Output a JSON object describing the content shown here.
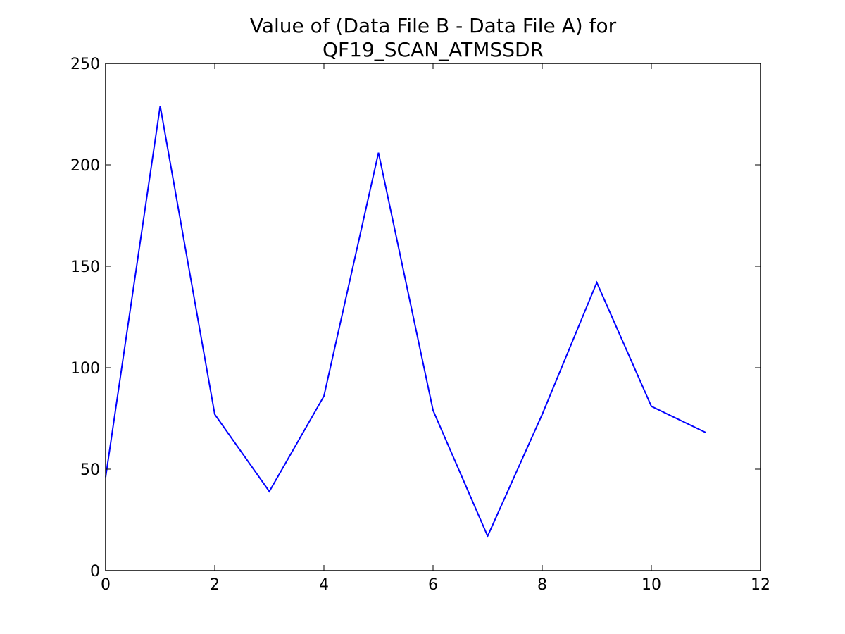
{
  "chart_data": {
    "type": "line",
    "title_lines": [
      "Value of (Data File B - Data File A) for",
      "QF19_SCAN_ATMSSDR"
    ],
    "xlabel": "",
    "ylabel": "",
    "xlim": [
      0,
      12
    ],
    "ylim": [
      0,
      250
    ],
    "x_ticks": [
      0,
      2,
      4,
      6,
      8,
      10,
      12
    ],
    "y_ticks": [
      0,
      50,
      100,
      150,
      200,
      250
    ],
    "grid": false,
    "legend": "none",
    "series": [
      {
        "color": "#0000ff",
        "x": [
          0,
          1,
          2,
          3,
          4,
          5,
          6,
          7,
          8,
          9,
          10,
          11
        ],
        "y": [
          46,
          229,
          77,
          39,
          86,
          206,
          79,
          17,
          77,
          142,
          81,
          68
        ]
      }
    ]
  }
}
